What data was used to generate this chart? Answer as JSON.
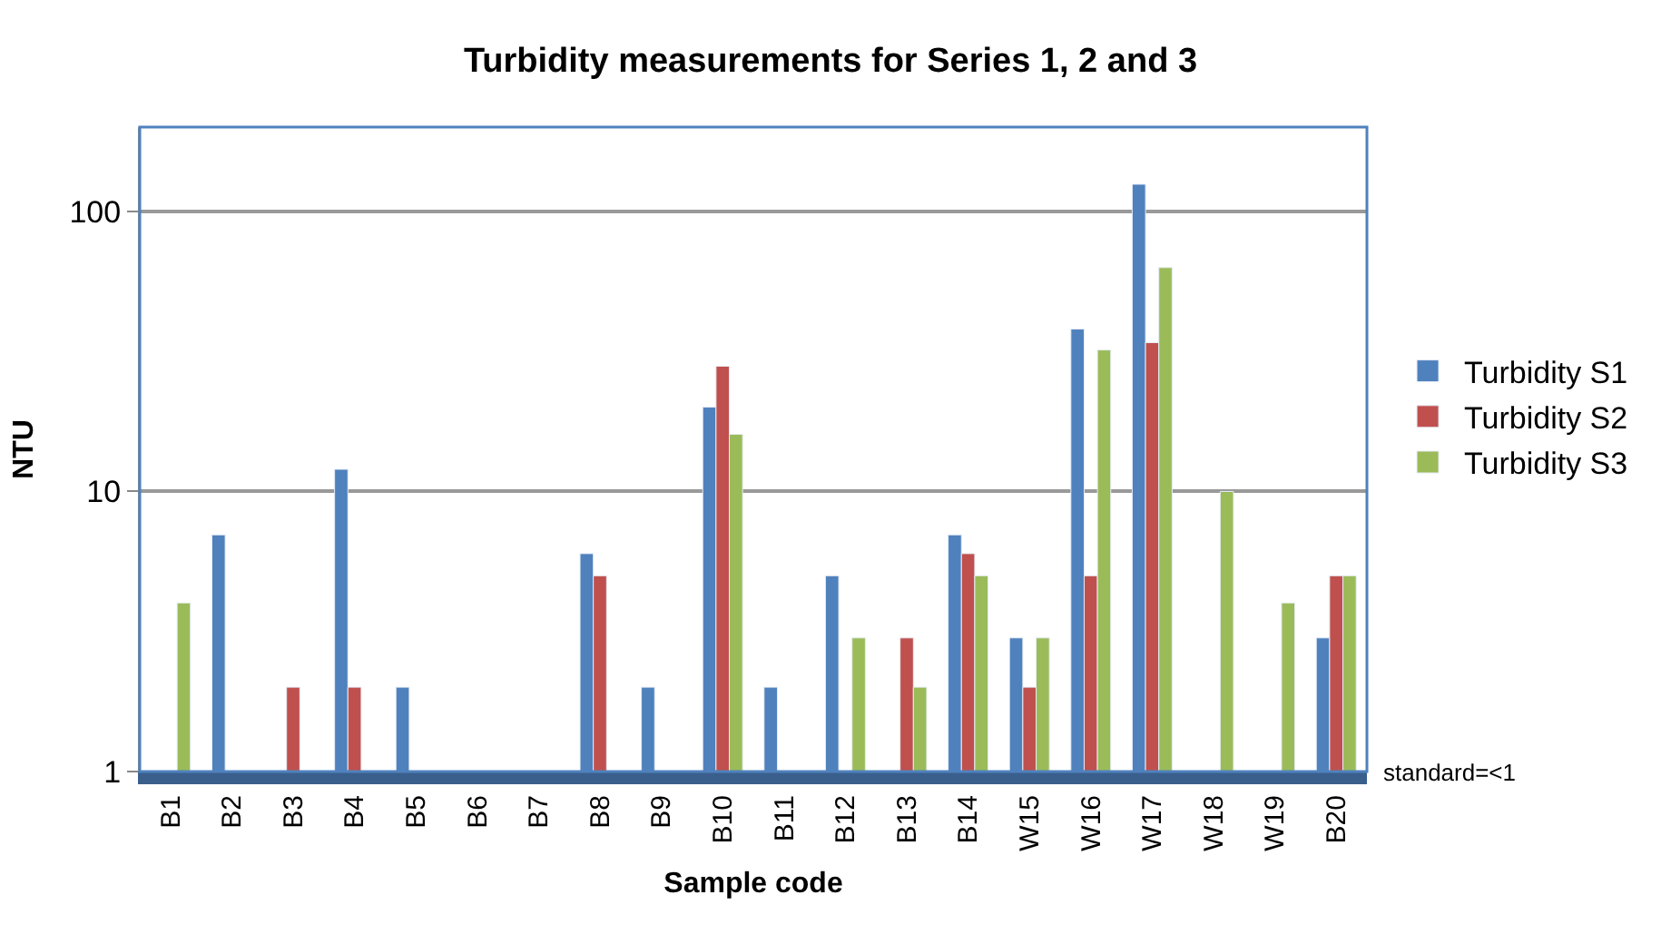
{
  "chart_data": {
    "type": "bar",
    "title": "Turbidity measurements for Series 1, 2 and 3",
    "xlabel": "Sample code",
    "ylabel": "NTU",
    "categories": [
      "B1",
      "B2",
      "B3",
      "B4",
      "B5",
      "B6",
      "B7",
      "B8",
      "B9",
      "B10",
      "B11",
      "B12",
      "B13",
      "B14",
      "W15",
      "W16",
      "W17",
      "W18",
      "W19",
      "B20"
    ],
    "series": [
      {
        "name": "Turbidity S1",
        "color": "#4f81bd",
        "values": [
          null,
          7,
          null,
          12,
          2,
          null,
          null,
          6,
          2,
          20,
          2,
          5,
          null,
          7,
          3,
          38,
          125,
          null,
          null,
          3
        ]
      },
      {
        "name": "Turbidity S2",
        "color": "#c0504d",
        "values": [
          null,
          null,
          2,
          2,
          null,
          null,
          null,
          5,
          null,
          28,
          null,
          null,
          3,
          6,
          2,
          5,
          34,
          null,
          null,
          5
        ]
      },
      {
        "name": "Turbidity S3",
        "color": "#9bbb59",
        "values": [
          4,
          null,
          null,
          null,
          null,
          null,
          null,
          null,
          null,
          16,
          null,
          3,
          2,
          5,
          3,
          32,
          63,
          10,
          4,
          5
        ]
      }
    ],
    "log": true,
    "ylim": [
      1,
      200
    ],
    "yticks": [
      1,
      10,
      100
    ],
    "grid": "y",
    "legend": "right",
    "annotations": [
      "standard=<1"
    ]
  }
}
